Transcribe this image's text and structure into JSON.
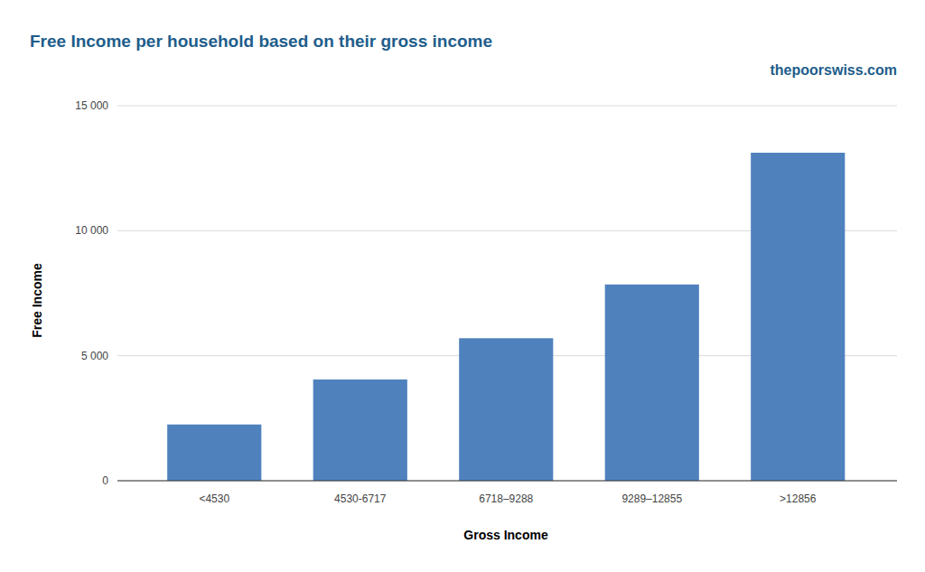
{
  "chart_data": {
    "type": "bar",
    "title": "Free Income per household based on their gross income",
    "subtitle": "thepoorswiss.com",
    "x_label": "Gross Income",
    "y_label": "Free Income",
    "categories": [
      "<4530",
      "4530-6717",
      "6718–9288",
      "9289–12855",
      ">12856"
    ],
    "values": [
      2250,
      4050,
      5700,
      7850,
      13120
    ],
    "color": "#4f81bd",
    "ylim": [
      0,
      15000
    ],
    "yticks": [
      0,
      {
        "value": 5000,
        "label": "5 000"
      },
      {
        "value": 10000,
        "label": "10 000"
      },
      {
        "value": 15000,
        "label": "15 000"
      }
    ],
    "grid": true
  }
}
